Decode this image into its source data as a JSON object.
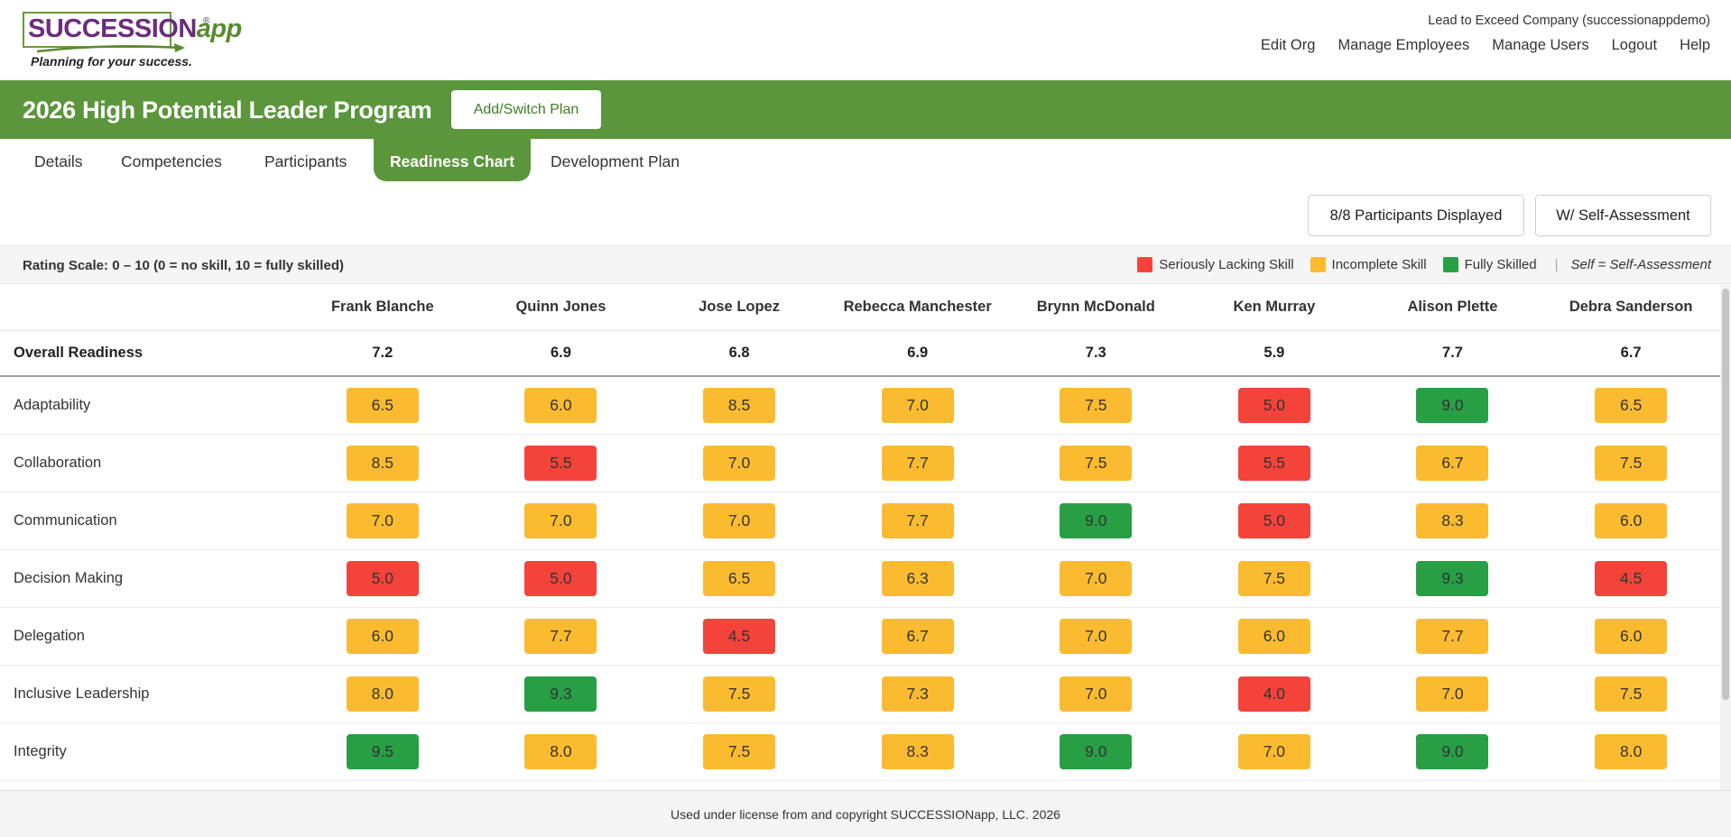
{
  "logo": {
    "word_a": "SUCCESSION",
    "word_b": "app",
    "registered": "®",
    "tagline": "Planning for your success."
  },
  "header": {
    "company": "Lead to Exceed Company (successionappdemo)",
    "nav": [
      "Edit Org",
      "Manage Employees",
      "Manage Users",
      "Logout",
      "Help"
    ]
  },
  "plan": {
    "title": "2026 High Potential Leader Program",
    "switch_label": "Add/Switch Plan"
  },
  "tabs": [
    {
      "label": "Details",
      "active": false
    },
    {
      "label": "Competencies",
      "active": false
    },
    {
      "label": "Participants",
      "active": false
    },
    {
      "label": "Readiness Chart",
      "active": true
    },
    {
      "label": "Development Plan",
      "active": false
    }
  ],
  "controls": {
    "participants_label": "8/8 Participants Displayed",
    "self_assessment_label": "W/ Self-Assessment"
  },
  "legend": {
    "scale": "Rating Scale: 0 – 10 (0 = no skill, 10 = fully skilled)",
    "items": [
      {
        "label": "Seriously Lacking Skill",
        "color": "#f4433b"
      },
      {
        "label": "Incomplete Skill",
        "color": "#fbbb30"
      },
      {
        "label": "Fully Skilled",
        "color": "#289f45"
      }
    ],
    "separator": "|",
    "self_note": "Self = Self-Assessment"
  },
  "colors": {
    "red": "#f4433b",
    "yellow": "#fbbb30",
    "green": "#289f45",
    "brand_green": "#5b963c",
    "brand_purple": "#6b2d7c"
  },
  "chart": {
    "participants": [
      "Frank Blanche",
      "Quinn Jones",
      "Jose Lopez",
      "Rebecca Manchester",
      "Brynn McDonald",
      "Ken Murray",
      "Alison Plette",
      "Debra Sanderson"
    ],
    "overall_label": "Overall Readiness",
    "overall": [
      "7.2",
      "6.9",
      "6.8",
      "6.9",
      "7.3",
      "5.9",
      "7.7",
      "6.7"
    ],
    "competencies": [
      {
        "name": "Adaptability",
        "scores": [
          "6.5",
          "6.0",
          "8.5",
          "7.0",
          "7.5",
          "5.0",
          "9.0",
          "6.5"
        ],
        "levels": [
          "y",
          "y",
          "y",
          "y",
          "y",
          "r",
          "g",
          "y"
        ]
      },
      {
        "name": "Collaboration",
        "scores": [
          "8.5",
          "5.5",
          "7.0",
          "7.7",
          "7.5",
          "5.5",
          "6.7",
          "7.5"
        ],
        "levels": [
          "y",
          "r",
          "y",
          "y",
          "y",
          "r",
          "y",
          "y"
        ]
      },
      {
        "name": "Communication",
        "scores": [
          "7.0",
          "7.0",
          "7.0",
          "7.7",
          "9.0",
          "5.0",
          "8.3",
          "6.0"
        ],
        "levels": [
          "y",
          "y",
          "y",
          "y",
          "g",
          "r",
          "y",
          "y"
        ]
      },
      {
        "name": "Decision Making",
        "scores": [
          "5.0",
          "5.0",
          "6.5",
          "6.3",
          "7.0",
          "7.5",
          "9.3",
          "4.5"
        ],
        "levels": [
          "r",
          "r",
          "y",
          "y",
          "y",
          "y",
          "g",
          "r"
        ]
      },
      {
        "name": "Delegation",
        "scores": [
          "6.0",
          "7.7",
          "4.5",
          "6.7",
          "7.0",
          "6.0",
          "7.7",
          "6.0"
        ],
        "levels": [
          "y",
          "y",
          "r",
          "y",
          "y",
          "y",
          "y",
          "y"
        ]
      },
      {
        "name": "Inclusive Leadership",
        "scores": [
          "8.0",
          "9.3",
          "7.5",
          "7.3",
          "7.0",
          "4.0",
          "7.0",
          "7.5"
        ],
        "levels": [
          "y",
          "g",
          "y",
          "y",
          "y",
          "r",
          "y",
          "y"
        ]
      },
      {
        "name": "Integrity",
        "scores": [
          "9.5",
          "8.0",
          "7.5",
          "8.3",
          "9.0",
          "7.0",
          "9.0",
          "8.0"
        ],
        "levels": [
          "g",
          "y",
          "y",
          "y",
          "g",
          "y",
          "g",
          "y"
        ]
      }
    ]
  },
  "footer": {
    "text": "Used under license from and copyright SUCCESSIONapp, LLC. 2026"
  }
}
